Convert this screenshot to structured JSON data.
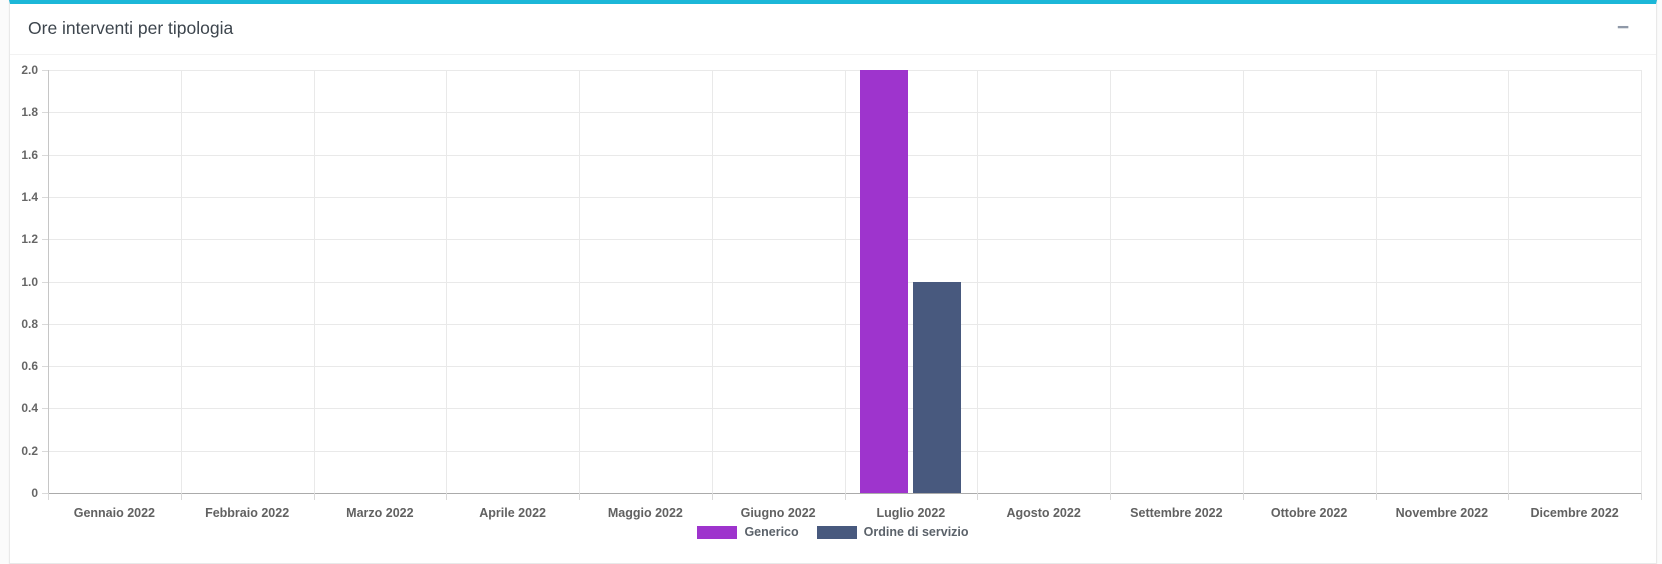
{
  "panel": {
    "title": "Ore interventi per tipologia",
    "accent_color": "#1cb7d8",
    "tools": {
      "minimize_icon": "−"
    }
  },
  "chart_data": {
    "type": "bar",
    "title": "",
    "xlabel": "",
    "ylabel": "",
    "categories": [
      "Gennaio 2022",
      "Febbraio 2022",
      "Marzo 2022",
      "Aprile 2022",
      "Maggio 2022",
      "Giugno 2022",
      "Luglio 2022",
      "Agosto 2022",
      "Settembre 2022",
      "Ottobre 2022",
      "Novembre 2022",
      "Dicembre 2022"
    ],
    "series": [
      {
        "name": "Generico",
        "color": "#9e34cd",
        "values": [
          0,
          0,
          0,
          0,
          0,
          0,
          2,
          0,
          0,
          0,
          0,
          0
        ]
      },
      {
        "name": "Ordine di servizio",
        "color": "#48597e",
        "values": [
          0,
          0,
          0,
          0,
          0,
          0,
          1,
          0,
          0,
          0,
          0,
          0
        ]
      }
    ],
    "ylim": [
      0,
      2
    ],
    "ytick_step": 0.2,
    "ytick_labels": [
      "0",
      "0.2",
      "0.4",
      "0.6",
      "0.8",
      "1.0",
      "1.2",
      "1.4",
      "1.6",
      "1.8",
      "2.0"
    ],
    "grid": true,
    "legend_position": "bottom"
  }
}
